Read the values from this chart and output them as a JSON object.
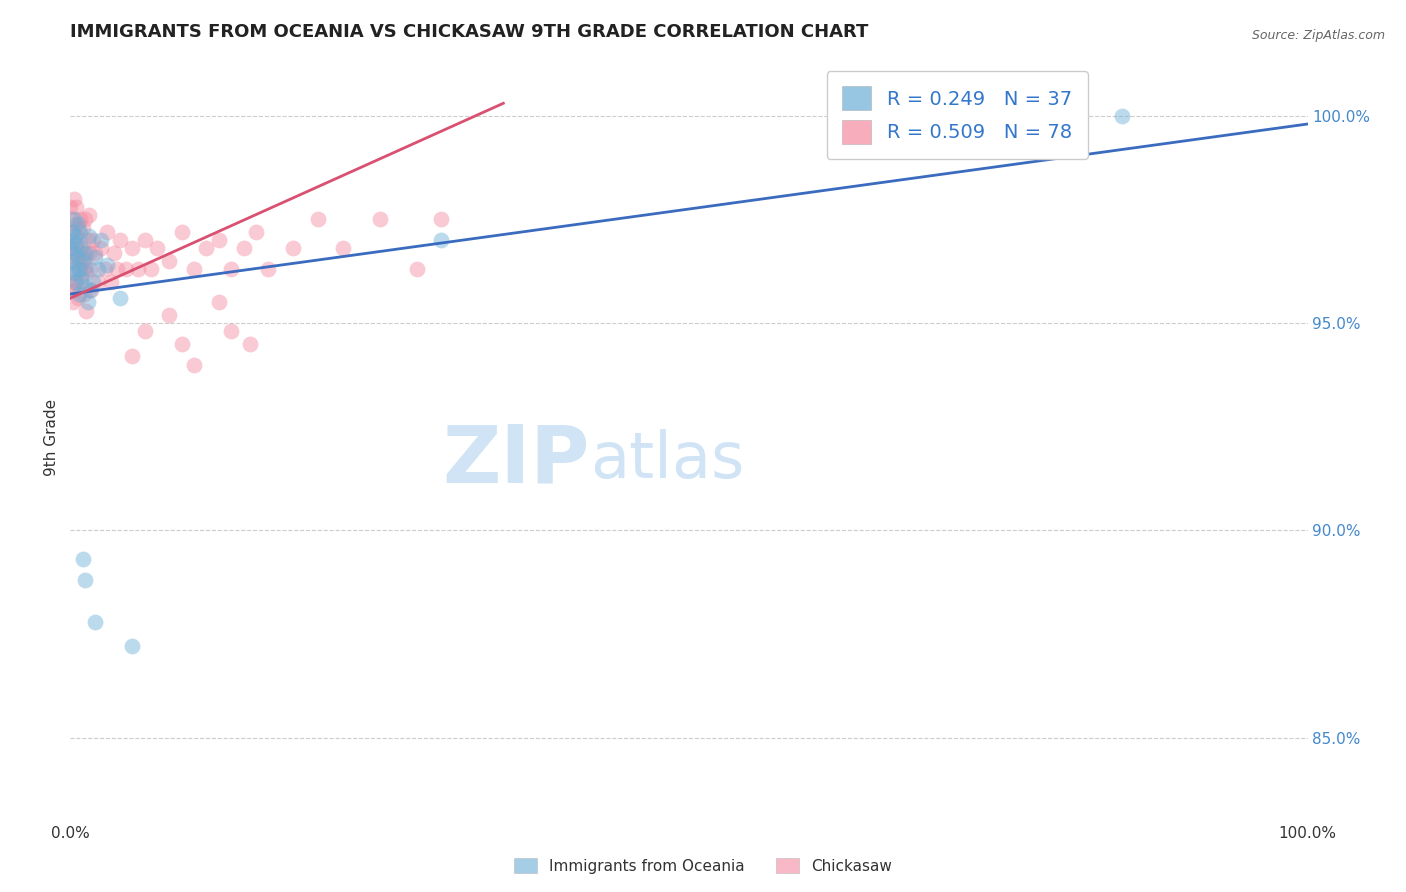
{
  "title": "IMMIGRANTS FROM OCEANIA VS CHICKASAW 9TH GRADE CORRELATION CHART",
  "source_text": "Source: ZipAtlas.com",
  "ylabel": "9th Grade",
  "right_ytick_labels": [
    "85.0%",
    "90.0%",
    "95.0%",
    "100.0%"
  ],
  "right_ytick_values": [
    0.85,
    0.9,
    0.95,
    1.0
  ],
  "xlim": [
    0.0,
    1.0
  ],
  "ylim": [
    0.83,
    1.015
  ],
  "legend_entries": [
    {
      "label": "R = 0.249   N = 37"
    },
    {
      "label": "R = 0.509   N = 78"
    }
  ],
  "blue_color": "#6aaed6",
  "pink_color": "#f48aa0",
  "blue_line_color": "#3a6bbf",
  "pink_line_color": "#d95070",
  "watermark_zip": "ZIP",
  "watermark_atlas": "atlas",
  "watermark_color": "#d0e4f5",
  "title_fontsize": 13,
  "axis_label_fontsize": 11,
  "tick_fontsize": 11,
  "legend_fontsize": 14,
  "blue_scatter_x": [
    0.0,
    0.001,
    0.001,
    0.002,
    0.002,
    0.003,
    0.003,
    0.004,
    0.004,
    0.005,
    0.005,
    0.006,
    0.006,
    0.007,
    0.007,
    0.008,
    0.009,
    0.009,
    0.01,
    0.011,
    0.012,
    0.013,
    0.014,
    0.015,
    0.016,
    0.018,
    0.02,
    0.022,
    0.025,
    0.03,
    0.04,
    0.3,
    0.85,
    0.01,
    0.012,
    0.02,
    0.05
  ],
  "blue_scatter_y": [
    0.968,
    0.972,
    0.965,
    0.97,
    0.963,
    0.975,
    0.967,
    0.971,
    0.962,
    0.969,
    0.96,
    0.974,
    0.966,
    0.963,
    0.957,
    0.972,
    0.968,
    0.961,
    0.965,
    0.959,
    0.963,
    0.967,
    0.955,
    0.971,
    0.958,
    0.96,
    0.966,
    0.963,
    0.97,
    0.964,
    0.956,
    0.97,
    1.0,
    0.893,
    0.888,
    0.878,
    0.872
  ],
  "pink_scatter_x": [
    0.0,
    0.0,
    0.001,
    0.001,
    0.001,
    0.002,
    0.002,
    0.002,
    0.003,
    0.003,
    0.003,
    0.004,
    0.004,
    0.004,
    0.005,
    0.005,
    0.005,
    0.006,
    0.006,
    0.006,
    0.007,
    0.007,
    0.008,
    0.008,
    0.009,
    0.009,
    0.01,
    0.01,
    0.011,
    0.011,
    0.012,
    0.012,
    0.013,
    0.013,
    0.014,
    0.015,
    0.015,
    0.016,
    0.017,
    0.018,
    0.02,
    0.022,
    0.025,
    0.028,
    0.03,
    0.033,
    0.035,
    0.038,
    0.04,
    0.045,
    0.05,
    0.055,
    0.06,
    0.065,
    0.07,
    0.08,
    0.09,
    0.1,
    0.11,
    0.12,
    0.13,
    0.14,
    0.15,
    0.16,
    0.18,
    0.2,
    0.22,
    0.25,
    0.28,
    0.3,
    0.05,
    0.06,
    0.08,
    0.09,
    0.1,
    0.12,
    0.13,
    0.145
  ],
  "pink_scatter_y": [
    0.978,
    0.968,
    0.975,
    0.965,
    0.958,
    0.972,
    0.962,
    0.955,
    0.98,
    0.97,
    0.96,
    0.967,
    0.958,
    0.974,
    0.978,
    0.968,
    0.96,
    0.973,
    0.965,
    0.956,
    0.97,
    0.963,
    0.975,
    0.965,
    0.967,
    0.96,
    0.973,
    0.963,
    0.967,
    0.957,
    0.975,
    0.965,
    0.962,
    0.953,
    0.97,
    0.976,
    0.967,
    0.963,
    0.958,
    0.97,
    0.967,
    0.96,
    0.968,
    0.963,
    0.972,
    0.96,
    0.967,
    0.963,
    0.97,
    0.963,
    0.968,
    0.963,
    0.97,
    0.963,
    0.968,
    0.965,
    0.972,
    0.963,
    0.968,
    0.97,
    0.963,
    0.968,
    0.972,
    0.963,
    0.968,
    0.975,
    0.968,
    0.975,
    0.963,
    0.975,
    0.942,
    0.948,
    0.952,
    0.945,
    0.94,
    0.955,
    0.948,
    0.945
  ],
  "blue_line_x": [
    0.0,
    1.0
  ],
  "blue_line_y": [
    0.957,
    0.998
  ],
  "pink_line_x": [
    0.0,
    0.35
  ],
  "pink_line_y": [
    0.956,
    1.003
  ],
  "background_color": "#ffffff",
  "grid_color": "#cccccc",
  "marker_size": 130,
  "marker_alpha": 0.45
}
